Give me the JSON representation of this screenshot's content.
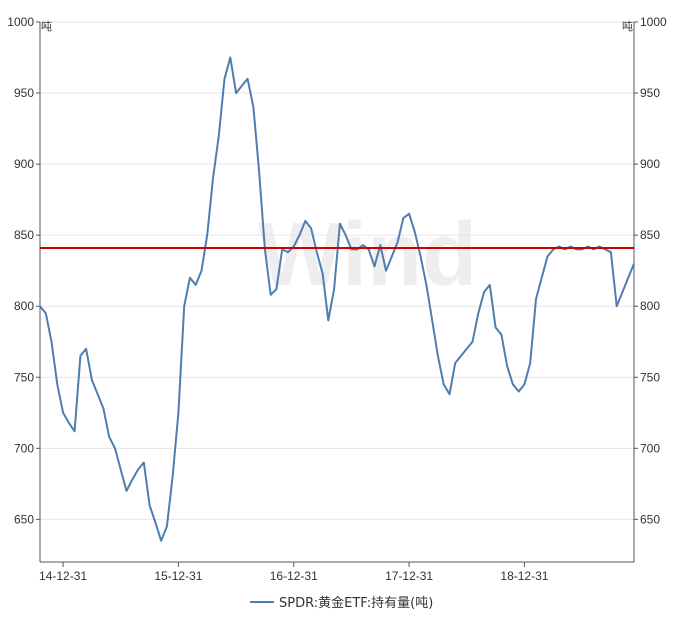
{
  "chart_data": {
    "type": "line",
    "title": "",
    "ylabel_left": "吨",
    "ylabel_right": "吨",
    "watermark": "Wind",
    "ylim": [
      620,
      1000
    ],
    "yticks": [
      650,
      700,
      750,
      800,
      850,
      900,
      950,
      1000
    ],
    "x_tick_labels": [
      "14-12-31",
      "15-12-31",
      "16-12-31",
      "17-12-31",
      "18-12-31"
    ],
    "x_range": [
      2014.8,
      2019.95
    ],
    "x_ticks": [
      2015.0,
      2016.0,
      2017.0,
      2018.0,
      2019.0
    ],
    "reference_line": {
      "value": 841,
      "color": "#cc0000"
    },
    "series": [
      {
        "name": "SPDR:黄金ETF:持有量(吨)",
        "color": "#4f7dae",
        "x": [
          2014.8,
          2014.85,
          2014.9,
          2014.95,
          2015.0,
          2015.05,
          2015.1,
          2015.15,
          2015.2,
          2015.25,
          2015.3,
          2015.35,
          2015.4,
          2015.45,
          2015.5,
          2015.55,
          2015.6,
          2015.65,
          2015.7,
          2015.75,
          2015.8,
          2015.85,
          2015.9,
          2015.95,
          2016.0,
          2016.05,
          2016.1,
          2016.15,
          2016.2,
          2016.25,
          2016.3,
          2016.35,
          2016.4,
          2016.45,
          2016.5,
          2016.55,
          2016.6,
          2016.65,
          2016.7,
          2016.75,
          2016.8,
          2016.85,
          2016.9,
          2016.95,
          2017.0,
          2017.05,
          2017.1,
          2017.15,
          2017.2,
          2017.25,
          2017.3,
          2017.35,
          2017.4,
          2017.45,
          2017.5,
          2017.55,
          2017.6,
          2017.65,
          2017.7,
          2017.75,
          2017.8,
          2017.85,
          2017.9,
          2017.95,
          2018.0,
          2018.05,
          2018.1,
          2018.15,
          2018.2,
          2018.25,
          2018.3,
          2018.35,
          2018.4,
          2018.45,
          2018.5,
          2018.55,
          2018.6,
          2018.65,
          2018.7,
          2018.75,
          2018.8,
          2018.85,
          2018.9,
          2018.95,
          2019.0,
          2019.05,
          2019.1,
          2019.15,
          2019.2,
          2019.25,
          2019.3,
          2019.35,
          2019.4,
          2019.45,
          2019.5,
          2019.55,
          2019.6,
          2019.65,
          2019.7,
          2019.75,
          2019.8,
          2019.85,
          2019.9,
          2019.95
        ],
        "values": [
          800,
          795,
          775,
          745,
          725,
          718,
          712,
          765,
          770,
          748,
          738,
          728,
          708,
          700,
          685,
          670,
          678,
          685,
          690,
          660,
          648,
          635,
          645,
          680,
          725,
          800,
          820,
          815,
          825,
          850,
          890,
          920,
          960,
          975,
          950,
          955,
          960,
          940,
          895,
          840,
          808,
          812,
          840,
          838,
          842,
          850,
          860,
          855,
          838,
          823,
          790,
          812,
          858,
          850,
          840,
          840,
          843,
          840,
          828,
          843,
          825,
          835,
          845,
          862,
          865,
          852,
          835,
          815,
          790,
          765,
          745,
          738,
          760,
          765,
          770,
          775,
          795,
          810,
          815,
          785,
          780,
          758,
          745,
          740,
          745,
          760,
          805,
          820,
          835,
          840,
          842,
          840,
          842,
          840,
          840,
          842,
          840,
          842,
          840,
          838,
          800,
          810,
          820,
          830
        ]
      }
    ],
    "legend": {
      "position": "bottom-center",
      "label": "SPDR:黄金ETF:持有量(吨)"
    }
  }
}
